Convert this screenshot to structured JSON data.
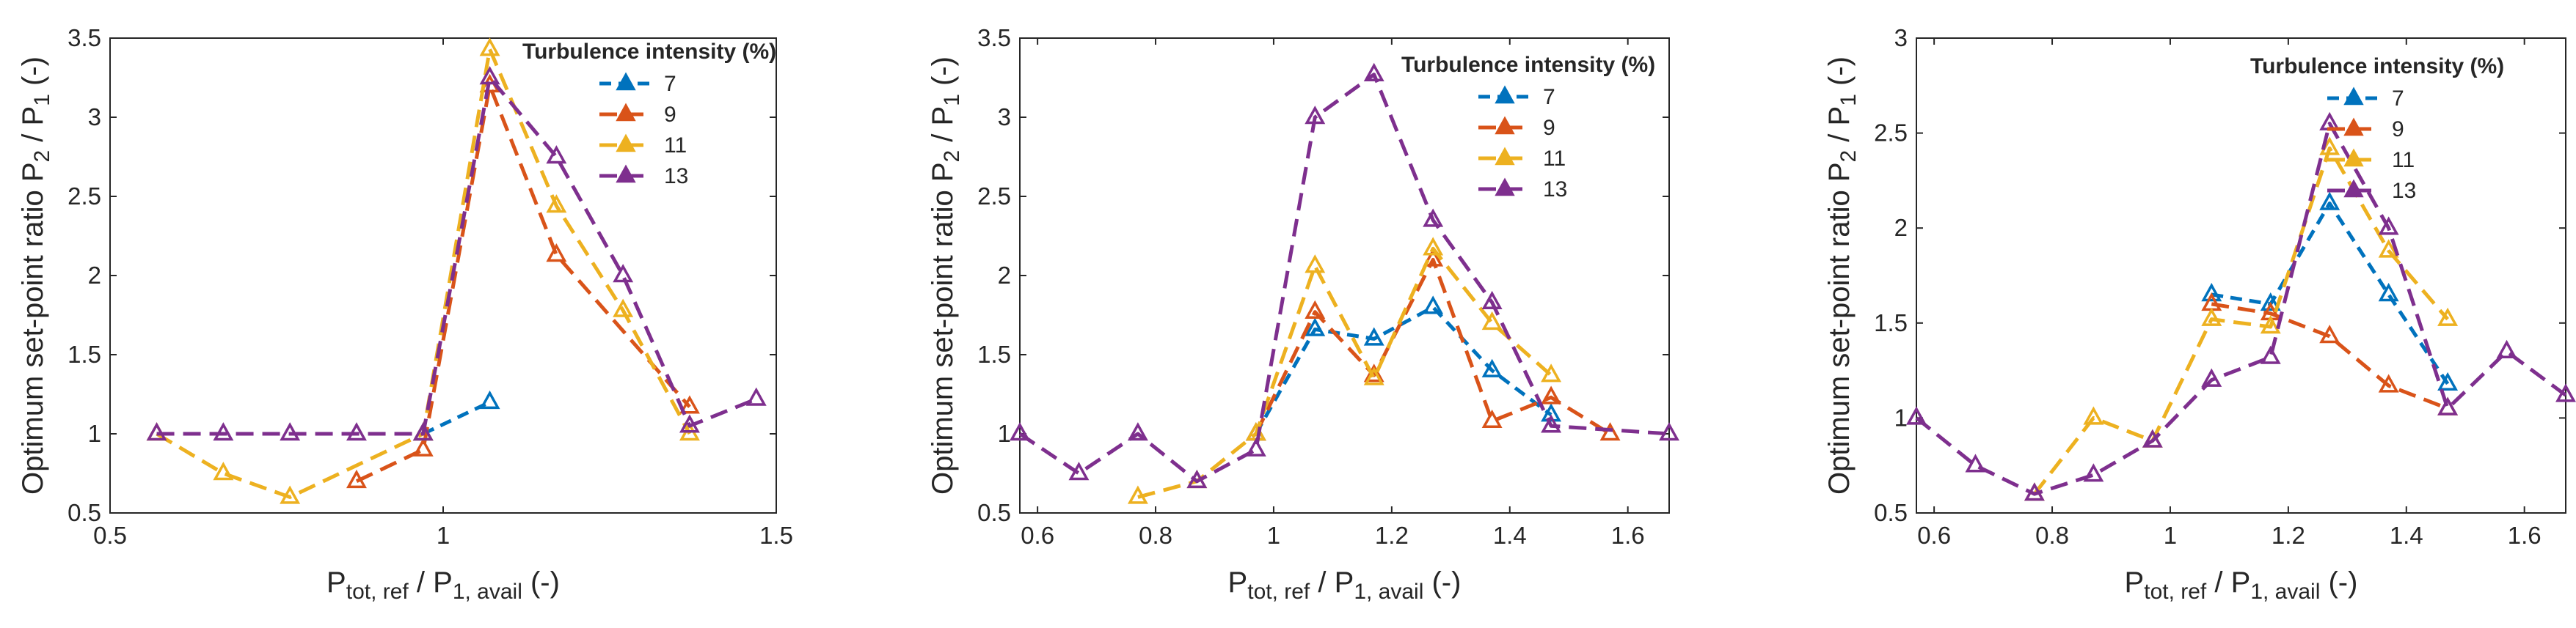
{
  "chart_data": [
    {
      "type": "line",
      "title": "",
      "xlabel": {
        "main": "P",
        "sub1": "tot, ref",
        "mid": " / P",
        "sub2": "1, avail",
        "tail": " (-)"
      },
      "ylabel": {
        "main": "Optimum set-point ratio P",
        "sub1": "2",
        "mid": " / P",
        "sub2": "1",
        "tail": " (-)"
      },
      "xlim": [
        0.5,
        1.5
      ],
      "ylim": [
        0.5,
        3.5
      ],
      "xticks": [
        0.5,
        1,
        1.5
      ],
      "xtick_labels": [
        "0.5",
        "1",
        "1.5"
      ],
      "yticks": [
        0.5,
        1,
        1.5,
        2,
        2.5,
        3,
        3.5
      ],
      "ytick_labels": [
        "0.5",
        "1",
        "1.5",
        "2",
        "2.5",
        "3",
        "3.5"
      ],
      "legend_title": "Turbulence intensity (%)",
      "legend_position": "top-right",
      "series": [
        {
          "name": "7",
          "color": "#0072BD",
          "x": [
            0.97,
            1.07
          ],
          "y": [
            1.0,
            1.2
          ]
        },
        {
          "name": "9",
          "color": "#D95319",
          "x": [
            0.87,
            0.97,
            1.07,
            1.17,
            1.37
          ],
          "y": [
            0.7,
            0.9,
            3.2,
            2.13,
            1.17
          ]
        },
        {
          "name": "11",
          "color": "#EDB120",
          "x": [
            0.57,
            0.67,
            0.77,
            0.97,
            1.07,
            1.17,
            1.27,
            1.37
          ],
          "y": [
            1.0,
            0.75,
            0.6,
            1.0,
            3.43,
            2.44,
            1.78,
            1.0
          ]
        },
        {
          "name": "13",
          "color": "#7E2F8E",
          "x": [
            0.57,
            0.67,
            0.77,
            0.87,
            0.97,
            1.07,
            1.17,
            1.27,
            1.37,
            1.47
          ],
          "y": [
            1.0,
            1.0,
            1.0,
            1.0,
            1.0,
            3.25,
            2.75,
            2.0,
            1.05,
            1.22
          ]
        }
      ]
    },
    {
      "type": "line",
      "title": "",
      "xlabel": {
        "main": "P",
        "sub1": "tot, ref",
        "mid": " / P",
        "sub2": "1, avail",
        "tail": " (-)"
      },
      "ylabel": {
        "main": "Optimum set-point ratio P",
        "sub1": "2",
        "mid": " / P",
        "sub2": "1",
        "tail": " (-)"
      },
      "xlim": [
        0.57,
        1.67
      ],
      "ylim": [
        0.5,
        3.5
      ],
      "xticks": [
        0.6,
        0.8,
        1,
        1.2,
        1.4,
        1.6
      ],
      "xtick_labels": [
        "0.6",
        "0.8",
        "1",
        "1.2",
        "1.4",
        "1.6"
      ],
      "yticks": [
        0.5,
        1,
        1.5,
        2,
        2.5,
        3,
        3.5
      ],
      "ytick_labels": [
        "0.5",
        "1",
        "1.5",
        "2",
        "2.5",
        "3",
        "3.5"
      ],
      "legend_title": "Turbulence intensity (%)",
      "legend_position": "top-right",
      "series": [
        {
          "name": "7",
          "color": "#0072BD",
          "x": [
            0.97,
            1.07,
            1.17,
            1.27,
            1.37,
            1.47
          ],
          "y": [
            1.0,
            1.66,
            1.6,
            1.8,
            1.4,
            1.12
          ]
        },
        {
          "name": "9",
          "color": "#D95319",
          "x": [
            0.97,
            1.07,
            1.17,
            1.27,
            1.37,
            1.47,
            1.57
          ],
          "y": [
            1.0,
            1.77,
            1.37,
            2.1,
            1.08,
            1.23,
            1.0
          ]
        },
        {
          "name": "11",
          "color": "#EDB120",
          "x": [
            0.77,
            0.87,
            0.97,
            1.07,
            1.17,
            1.27,
            1.37,
            1.47
          ],
          "y": [
            0.6,
            0.7,
            1.0,
            2.06,
            1.35,
            2.17,
            1.7,
            1.37
          ]
        },
        {
          "name": "13",
          "color": "#7E2F8E",
          "x": [
            0.57,
            0.67,
            0.77,
            0.87,
            0.97,
            1.07,
            1.17,
            1.27,
            1.37,
            1.47,
            1.67
          ],
          "y": [
            1.0,
            0.75,
            1.0,
            0.7,
            0.9,
            3.0,
            3.27,
            2.35,
            1.83,
            1.05,
            1.0
          ]
        }
      ]
    },
    {
      "type": "line",
      "title": "",
      "xlabel": {
        "main": "P",
        "sub1": "tot, ref",
        "mid": " / P",
        "sub2": "1, avail",
        "tail": " (-)"
      },
      "ylabel": {
        "main": "Optimum set-point ratio P",
        "sub1": "2",
        "mid": " / P",
        "sub2": "1",
        "tail": " (-)"
      },
      "xlim": [
        0.57,
        1.67
      ],
      "ylim": [
        0.5,
        3.0
      ],
      "xticks": [
        0.6,
        0.8,
        1,
        1.2,
        1.4,
        1.6
      ],
      "xtick_labels": [
        "0.6",
        "0.8",
        "1",
        "1.2",
        "1.4",
        "1.6"
      ],
      "yticks": [
        0.5,
        1,
        1.5,
        2,
        2.5,
        3
      ],
      "ytick_labels": [
        "0.5",
        "1",
        "1.5",
        "2",
        "2.5",
        "3"
      ],
      "legend_title": "Turbulence intensity (%)",
      "legend_position": "top-right",
      "series": [
        {
          "name": "7",
          "color": "#0072BD",
          "x": [
            1.07,
            1.17,
            1.27,
            1.37,
            1.47
          ],
          "y": [
            1.65,
            1.6,
            2.13,
            1.65,
            1.18
          ]
        },
        {
          "name": "9",
          "color": "#D95319",
          "x": [
            1.07,
            1.17,
            1.27,
            1.37,
            1.47
          ],
          "y": [
            1.6,
            1.55,
            1.43,
            1.17,
            1.05
          ]
        },
        {
          "name": "11",
          "color": "#EDB120",
          "x": [
            0.77,
            0.87,
            0.97,
            1.07,
            1.17,
            1.27,
            1.37,
            1.47
          ],
          "y": [
            0.6,
            1.0,
            0.88,
            1.52,
            1.48,
            2.42,
            1.88,
            1.52
          ]
        },
        {
          "name": "13",
          "color": "#7E2F8E",
          "x": [
            0.57,
            0.67,
            0.77,
            0.87,
            0.97,
            1.07,
            1.17,
            1.27,
            1.37,
            1.47,
            1.57,
            1.67
          ],
          "y": [
            1.0,
            0.75,
            0.6,
            0.7,
            0.88,
            1.2,
            1.32,
            2.55,
            2.0,
            1.05,
            1.35,
            1.12
          ]
        }
      ]
    }
  ]
}
